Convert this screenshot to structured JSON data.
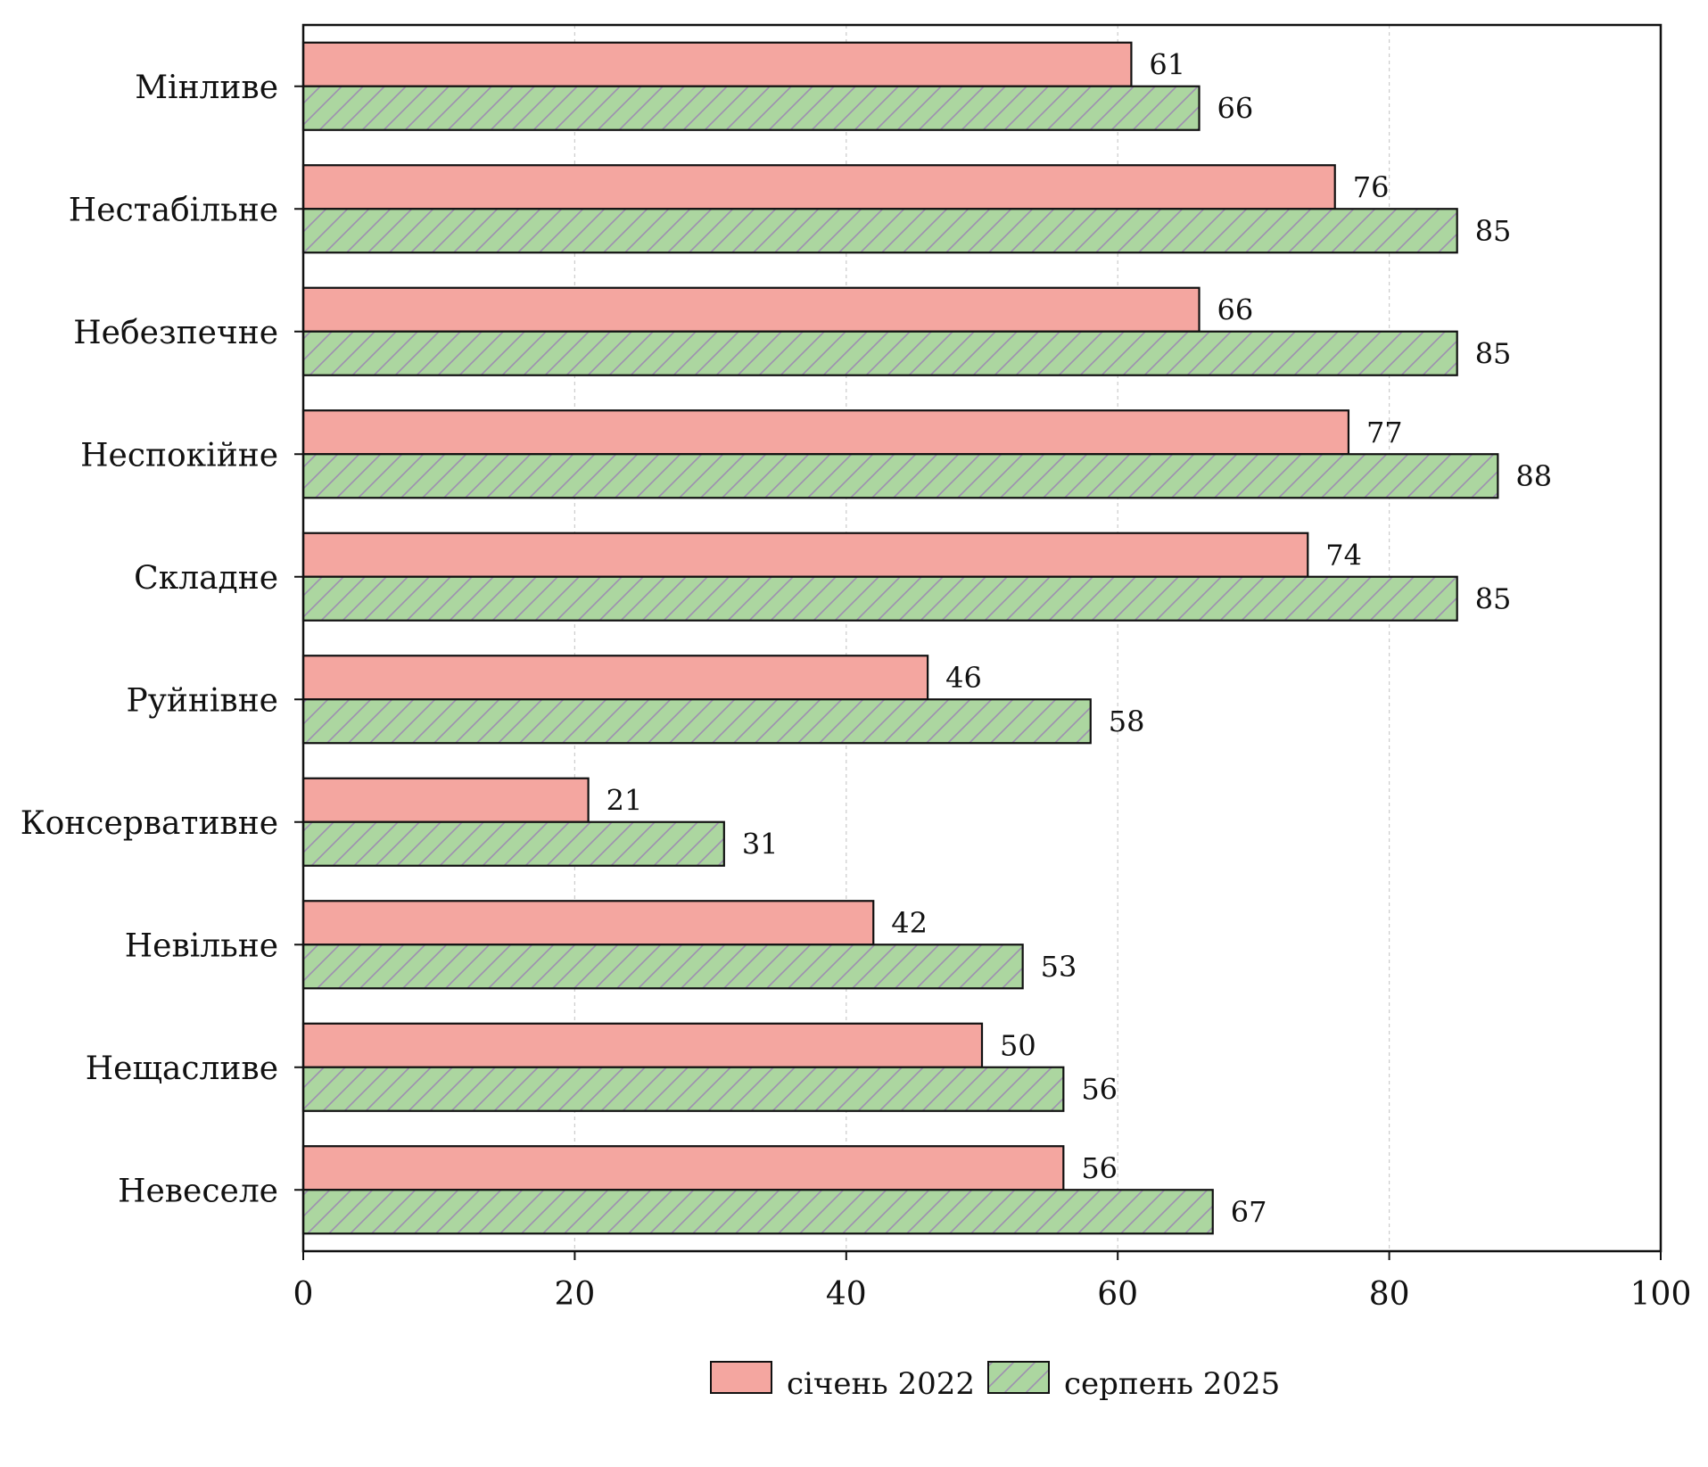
{
  "chart_data": {
    "type": "bar",
    "orientation": "horizontal",
    "categories": [
      "Мінливе",
      "Нестабільне",
      "Небезпечне",
      "Неспокійне",
      "Складне",
      "Руйнівне",
      "Консервативне",
      "Невільне",
      "Нещасливе",
      "Невеселе"
    ],
    "series": [
      {
        "name": "січень 2022",
        "values": [
          61,
          76,
          66,
          77,
          74,
          46,
          21,
          42,
          50,
          56
        ],
        "color": "#f4a6a0",
        "hatch": false
      },
      {
        "name": "серпень 2025",
        "values": [
          66,
          85,
          85,
          88,
          85,
          58,
          31,
          53,
          56,
          67
        ],
        "color": "#acd6a0",
        "hatch": true,
        "hatch_color": "#9e8fb0"
      }
    ],
    "xlim": [
      0,
      100
    ],
    "xticks": [
      "0",
      "20",
      "40",
      "60",
      "80",
      "100"
    ],
    "grid": "vertical dotted",
    "legend": "bottom-center",
    "data_labels": true
  }
}
